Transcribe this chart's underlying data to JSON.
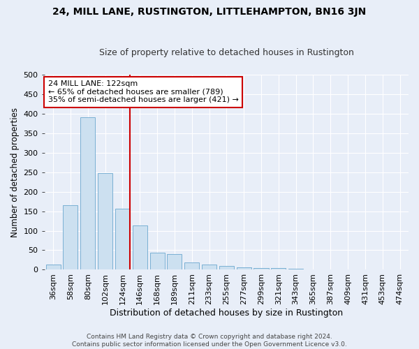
{
  "title": "24, MILL LANE, RUSTINGTON, LITTLEHAMPTON, BN16 3JN",
  "subtitle": "Size of property relative to detached houses in Rustington",
  "xlabel": "Distribution of detached houses by size in Rustington",
  "ylabel": "Number of detached properties",
  "bar_labels": [
    "36sqm",
    "58sqm",
    "80sqm",
    "102sqm",
    "124sqm",
    "146sqm",
    "168sqm",
    "189sqm",
    "211sqm",
    "233sqm",
    "255sqm",
    "277sqm",
    "299sqm",
    "321sqm",
    "343sqm",
    "365sqm",
    "387sqm",
    "409sqm",
    "431sqm",
    "453sqm",
    "474sqm"
  ],
  "bar_values": [
    14,
    165,
    390,
    248,
    156,
    113,
    43,
    40,
    18,
    14,
    10,
    6,
    5,
    5,
    3,
    1,
    1,
    1,
    1,
    1,
    1
  ],
  "bar_color": "#cce0f0",
  "bar_edge_color": "#7ab0d4",
  "background_color": "#e8eef8",
  "grid_color": "#ffffff",
  "vline_index": 4,
  "vline_color": "#cc0000",
  "annotation_text": "24 MILL LANE: 122sqm\n← 65% of detached houses are smaller (789)\n35% of semi-detached houses are larger (421) →",
  "annotation_box_color": "#ffffff",
  "annotation_box_edge": "#cc0000",
  "footnote": "Contains HM Land Registry data © Crown copyright and database right 2024.\nContains public sector information licensed under the Open Government Licence v3.0.",
  "ylim": [
    0,
    500
  ],
  "yticks": [
    0,
    50,
    100,
    150,
    200,
    250,
    300,
    350,
    400,
    450,
    500
  ],
  "title_fontsize": 10,
  "subtitle_fontsize": 9,
  "xlabel_fontsize": 9,
  "ylabel_fontsize": 8.5,
  "tick_fontsize": 8,
  "annot_fontsize": 8
}
